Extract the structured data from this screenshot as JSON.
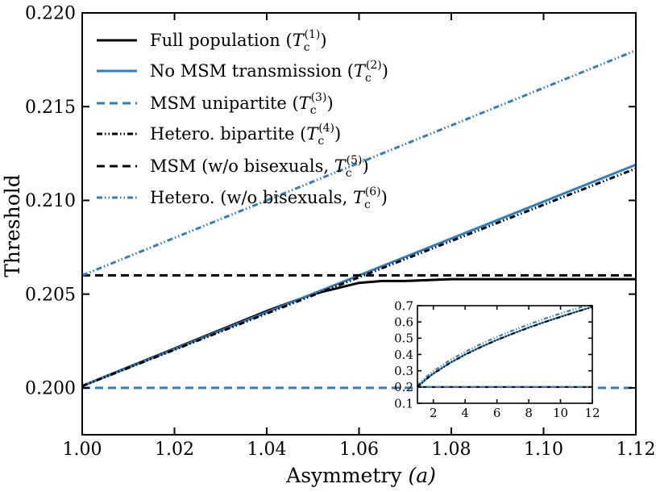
{
  "chart_data": [
    {
      "type": "line",
      "title": "",
      "xlabel": "Asymmetry (a)",
      "ylabel": "Threshold",
      "xlim": [
        1.0,
        1.12
      ],
      "ylim": [
        0.1975,
        0.22
      ],
      "xticks": [
        "1.00",
        "1.02",
        "1.04",
        "1.06",
        "1.08",
        "1.10",
        "1.12"
      ],
      "yticks": [
        "0.200",
        "0.205",
        "0.210",
        "0.215",
        "0.220"
      ],
      "grid": false,
      "legend_position": "top-left",
      "series": [
        {
          "name": "Full population (T_c^(1))",
          "color": "#000000",
          "style": "solid",
          "x": [
            1.0,
            1.01,
            1.02,
            1.03,
            1.04,
            1.05,
            1.06,
            1.065,
            1.07,
            1.08,
            1.09,
            1.1,
            1.11,
            1.12
          ],
          "y": [
            0.2001,
            0.2011,
            0.2021,
            0.2031,
            0.2041,
            0.205,
            0.2056,
            0.2057,
            0.2057,
            0.2058,
            0.2058,
            0.2058,
            0.2058,
            0.2058
          ]
        },
        {
          "name": "No MSM transmission (T_c^(2))",
          "color": "#2e7fc1",
          "style": "solid",
          "x": [
            1.0,
            1.12
          ],
          "y": [
            0.2001,
            0.2119
          ]
        },
        {
          "name": "MSM unipartite (T_c^(3))",
          "color": "#2e7fc1",
          "style": "dashed",
          "x": [
            1.0,
            1.12
          ],
          "y": [
            0.2,
            0.2
          ]
        },
        {
          "name": "Hetero. bipartite (T_c^(4))",
          "color": "#000000",
          "style": "dashdotdot",
          "x": [
            1.0,
            1.12
          ],
          "y": [
            0.2001,
            0.2117
          ]
        },
        {
          "name": "MSM (w/o bisexuals, T_c^(5))",
          "color": "#000000",
          "style": "dashed",
          "x": [
            1.0,
            1.12
          ],
          "y": [
            0.206,
            0.206
          ]
        },
        {
          "name": "Hetero. (w/o bisexuals, T_c^(6))",
          "color": "#2e7fc1",
          "style": "dashdotdot",
          "x": [
            1.0,
            1.12
          ],
          "y": [
            0.206,
            0.218
          ]
        }
      ]
    },
    {
      "type": "line",
      "title": "",
      "xlabel": "",
      "ylabel": "",
      "xlim": [
        1,
        12
      ],
      "ylim": [
        0.1,
        0.7
      ],
      "xticks": [
        "2",
        "4",
        "6",
        "8",
        "10",
        "12"
      ],
      "yticks": [
        "0.1",
        "0.2",
        "0.3",
        "0.4",
        "0.5",
        "0.6",
        "0.7"
      ],
      "grid": false,
      "series": [
        {
          "color": "#000000",
          "style": "solid",
          "x": [
            1,
            12
          ],
          "y": [
            0.2,
            0.2
          ]
        },
        {
          "color": "#2e7fc1",
          "style": "dashed",
          "x": [
            1,
            12
          ],
          "y": [
            0.2,
            0.2
          ]
        },
        {
          "color": "#2e7fc1",
          "style": "solid",
          "x": [
            1,
            1.5,
            2,
            3,
            4,
            5,
            6,
            7,
            8,
            9,
            10,
            11,
            12
          ],
          "y": [
            0.2,
            0.245,
            0.283,
            0.346,
            0.4,
            0.447,
            0.49,
            0.529,
            0.566,
            0.6,
            0.632,
            0.663,
            0.693
          ]
        },
        {
          "color": "#2e7fc1",
          "style": "dashdotdot",
          "x": [
            1,
            1.5,
            2,
            3,
            4,
            5,
            6,
            7,
            8,
            9,
            10,
            11,
            12
          ],
          "y": [
            0.21,
            0.258,
            0.297,
            0.362,
            0.417,
            0.465,
            0.508,
            0.548,
            0.585,
            0.62,
            0.652,
            0.683,
            0.71
          ]
        },
        {
          "color": "#000000",
          "style": "dashdotdot",
          "x": [
            1,
            1.5,
            2,
            3,
            4,
            5,
            6,
            7,
            8,
            9,
            10,
            11,
            12
          ],
          "y": [
            0.2,
            0.244,
            0.282,
            0.345,
            0.399,
            0.446,
            0.489,
            0.528,
            0.565,
            0.599,
            0.631,
            0.662,
            0.692
          ]
        }
      ]
    }
  ],
  "legend": [
    {
      "label": "Full population (",
      "sup": "(1)",
      "close": ")"
    },
    {
      "label": "No MSM transmission (",
      "sup": "(2)",
      "close": ")"
    },
    {
      "label": "MSM unipartite (",
      "sup": "(3)",
      "close": ")"
    },
    {
      "label": "Hetero. bipartite (",
      "sup": "(4)",
      "close": ")"
    },
    {
      "label": "MSM (w/o bisexuals, ",
      "sup": "(5)",
      "close": ")"
    },
    {
      "label": "Hetero. (w/o bisexuals, ",
      "sup": "(6)",
      "close": ")"
    }
  ],
  "axis_text": {
    "xlabel_main": "Asymmetry ",
    "xlabel_var": "(a)",
    "ylabel": "Threshold"
  }
}
